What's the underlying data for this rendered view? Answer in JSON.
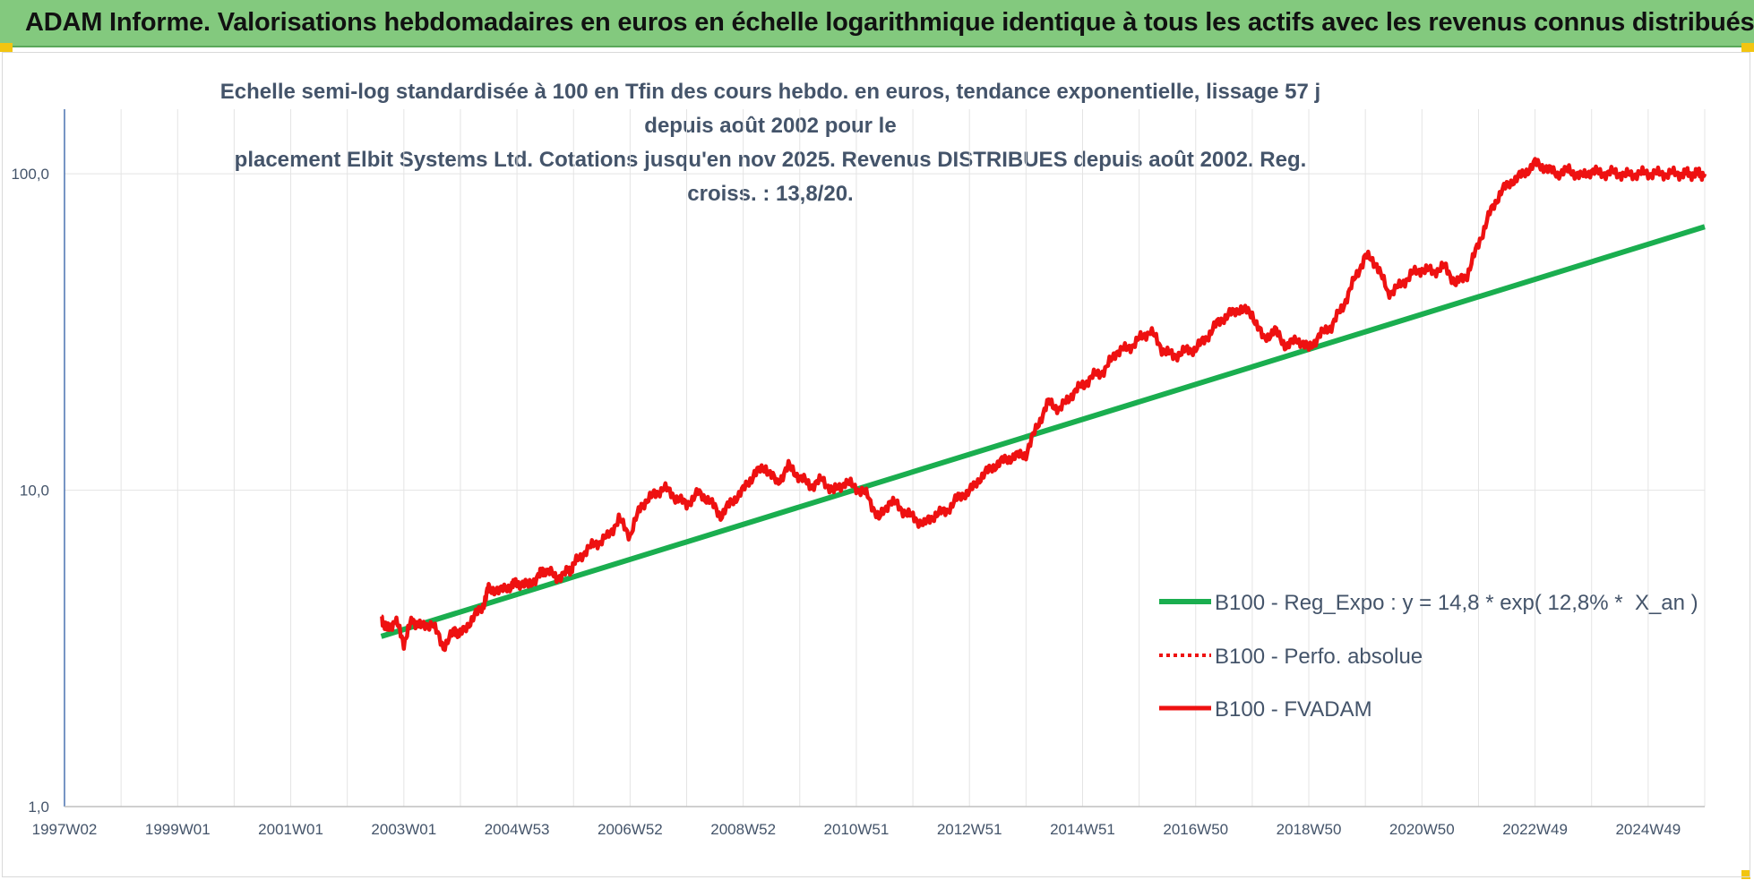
{
  "banner": {
    "title": "ADAM Informe. Valorisations hebdomadaires en euros en échelle logarithmique identique à tous les actifs avec les revenus connus distribués"
  },
  "colors": {
    "banner_bg": "#83c97e",
    "trend": "#1aae4f",
    "price": "#ee1111",
    "text": "#44546a"
  },
  "chart_data": {
    "type": "line",
    "title": "Echelle semi-log standardisée à 100 en Tfin des cours hebdo. en euros, tendance exponentielle, lissage 57 j depuis août 2002 pour le placement Elbit Systems Ltd. Cotations jusqu'en nov 2025. Revenus DISTRIBUES depuis août 2002. Reg. croiss. : 13,8/20.",
    "title_lines": [
      "Echelle semi-log standardisée à 100 en Tfin des cours hebdo. en euros, tendance exponentielle, lissage 57 j depuis août 2002 pour le",
      "placement Elbit Systems Ltd. Cotations jusqu'en nov 2025. Revenus DISTRIBUES depuis août 2002. Reg. croiss. : 13,8/20."
    ],
    "y_scale": "log",
    "ylim": [
      1,
      160
    ],
    "y_ticks": [
      {
        "value": 1,
        "label": "1,0"
      },
      {
        "value": 10,
        "label": "10,0"
      },
      {
        "value": 100,
        "label": "100,0"
      }
    ],
    "x_range": [
      1997.0,
      2026.0
    ],
    "x_ticks": [
      {
        "value": 1997.0,
        "label": "1997W02"
      },
      {
        "value": 1999.0,
        "label": "1999W01"
      },
      {
        "value": 2001.0,
        "label": "2001W01"
      },
      {
        "value": 2003.0,
        "label": "2003W01"
      },
      {
        "value": 2005.0,
        "label": "2004W53"
      },
      {
        "value": 2007.0,
        "label": "2006W52"
      },
      {
        "value": 2009.0,
        "label": "2008W52"
      },
      {
        "value": 2011.0,
        "label": "2010W51"
      },
      {
        "value": 2013.0,
        "label": "2012W51"
      },
      {
        "value": 2015.0,
        "label": "2014W51"
      },
      {
        "value": 2017.0,
        "label": "2016W50"
      },
      {
        "value": 2019.0,
        "label": "2018W50"
      },
      {
        "value": 2021.0,
        "label": "2020W50"
      },
      {
        "value": 2023.0,
        "label": "2022W49"
      },
      {
        "value": 2025.0,
        "label": "2024W49"
      }
    ],
    "grid": true,
    "legend_position": "right",
    "series": [
      {
        "name": "B100 - Reg_Expo : y = 14,8 * exp( 12,8% *  X_an )",
        "style": "solid",
        "color": "#1aae4f",
        "x": [
          2002.6,
          2026.0
        ],
        "y": [
          3.45,
          68
        ]
      },
      {
        "name": "B100 - Perfo. absolue",
        "style": "dotted",
        "color": "#ee1111",
        "x": [],
        "y": []
      },
      {
        "name": "B100 - FVADAM",
        "style": "solid",
        "color": "#ee1111",
        "x": [
          2002.6,
          2002.7,
          2002.85,
          2003.0,
          2003.15,
          2003.3,
          2003.5,
          2003.7,
          2003.9,
          2004.0,
          2004.2,
          2004.4,
          2004.5,
          2004.7,
          2004.9,
          2005.0,
          2005.2,
          2005.4,
          2005.5,
          2005.7,
          2005.9,
          2006.0,
          2006.2,
          2006.4,
          2006.6,
          2006.8,
          2007.0,
          2007.2,
          2007.4,
          2007.6,
          2007.8,
          2008.0,
          2008.2,
          2008.4,
          2008.6,
          2008.8,
          2009.0,
          2009.2,
          2009.4,
          2009.6,
          2009.8,
          2010.0,
          2010.2,
          2010.4,
          2010.6,
          2010.8,
          2011.0,
          2011.2,
          2011.4,
          2011.6,
          2011.8,
          2012.0,
          2012.2,
          2012.4,
          2012.6,
          2012.8,
          2013.0,
          2013.2,
          2013.4,
          2013.6,
          2013.8,
          2014.0,
          2014.2,
          2014.4,
          2014.6,
          2014.8,
          2015.0,
          2015.2,
          2015.4,
          2015.6,
          2015.8,
          2016.0,
          2016.2,
          2016.4,
          2016.6,
          2016.8,
          2017.0,
          2017.2,
          2017.4,
          2017.6,
          2017.8,
          2018.0,
          2018.2,
          2018.4,
          2018.6,
          2018.8,
          2019.0,
          2019.2,
          2019.4,
          2019.6,
          2019.8,
          2020.0,
          2020.2,
          2020.4,
          2020.6,
          2020.8,
          2021.0,
          2021.2,
          2021.4,
          2021.6,
          2021.8,
          2022.0,
          2022.2,
          2022.4,
          2022.6,
          2022.8,
          2023.0,
          2023.2,
          2023.4,
          2023.6,
          2023.8,
          2024.0,
          2024.2,
          2024.4,
          2024.6,
          2024.8,
          2025.0,
          2025.2,
          2025.4,
          2025.6,
          2025.75,
          2025.9,
          2026.0
        ],
        "y": [
          4.0,
          3.6,
          3.9,
          3.3,
          3.9,
          3.7,
          3.8,
          3.2,
          3.6,
          3.5,
          3.9,
          4.3,
          4.9,
          4.8,
          5.0,
          5.1,
          5.0,
          5.4,
          5.6,
          5.3,
          5.5,
          5.8,
          6.4,
          6.8,
          7.1,
          8.1,
          7.2,
          9.0,
          9.6,
          10.2,
          9.5,
          9.0,
          9.8,
          9.3,
          8.3,
          9.2,
          10.0,
          11.3,
          11.8,
          10.5,
          11.9,
          11.0,
          10.3,
          10.8,
          9.9,
          10.6,
          10.2,
          9.6,
          8.1,
          9.3,
          8.7,
          8.2,
          7.8,
          8.4,
          8.6,
          9.5,
          9.9,
          11.0,
          11.8,
          12.4,
          12.8,
          13.0,
          16.0,
          19.0,
          18.0,
          20.0,
          21.5,
          23.0,
          24.0,
          27.5,
          28.0,
          30.0,
          32.0,
          28.0,
          26.5,
          27.5,
          28.0,
          30.5,
          34.0,
          36.0,
          37.5,
          36.0,
          30.0,
          32.0,
          28.5,
          30.0,
          28.0,
          31.0,
          33.0,
          38.0,
          46.0,
          55.0,
          52.0,
          42.0,
          44.0,
          48.0,
          50.0,
          49.0,
          51.0,
          45.0,
          48.0,
          60.0,
          75.0,
          88.0,
          95.0,
          100.0,
          108.0,
          104.0,
          100.0,
          103.0,
          98.0,
          102.0,
          100.0,
          101.0,
          99.0,
          100.0,
          100.5,
          100.0,
          100.2,
          100.0,
          100.0,
          100.0,
          100.0
        ]
      }
    ]
  }
}
